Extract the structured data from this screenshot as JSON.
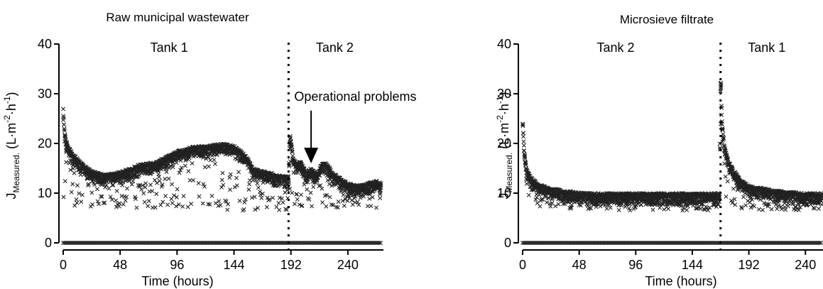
{
  "chart_data": [
    {
      "type": "scatter",
      "title": "Raw municipal wastewater",
      "xlabel": "Time (hours)",
      "ylabel": {
        "main": "J",
        "sub": "Measured.",
        "unit_prefix": "(L·m",
        "unit_exp1": "-2",
        "unit_mid": "·h",
        "unit_exp2": "-1",
        "unit_suffix": ")"
      },
      "xlim": [
        0,
        270
      ],
      "ylim": [
        0,
        40
      ],
      "xticks": [
        0,
        48,
        96,
        144,
        192,
        240
      ],
      "yticks": [
        0,
        10,
        20,
        30,
        40
      ],
      "tank_switch_x": 190,
      "annotations": {
        "left_tank": "Tank 1",
        "right_tank": "Tank 2",
        "problem": "Operational problems"
      },
      "arrow_target": {
        "x": 209,
        "y": 16
      },
      "marker": "x",
      "series": [
        {
          "kind": "upper_envelope",
          "x": [
            0,
            1,
            2,
            4,
            8,
            12,
            18,
            24,
            30,
            36,
            42,
            48,
            56,
            64,
            72,
            80,
            88,
            96,
            104,
            112,
            120,
            128,
            136,
            144,
            150,
            156,
            160,
            168,
            176,
            184,
            190,
            191,
            192,
            194,
            197,
            200,
            203,
            206,
            208,
            211,
            214,
            218,
            222,
            228,
            234,
            240,
            248,
            256,
            264,
            268
          ],
          "y": [
            27,
            23,
            21,
            19.5,
            18,
            17,
            15.5,
            14.5,
            14,
            13.8,
            14,
            14.3,
            15,
            15.8,
            16,
            16.5,
            17.5,
            18.5,
            19,
            19.5,
            19.5,
            19.8,
            20,
            19.5,
            18.5,
            17,
            15,
            14.5,
            14,
            13.5,
            13.5,
            22,
            21,
            17,
            16,
            16.5,
            15,
            14,
            15,
            14.5,
            14,
            16,
            16,
            14,
            13,
            12,
            11.5,
            12,
            12.5,
            12
          ]
        },
        {
          "kind": "lower_envelope",
          "x": [
            0,
            1,
            2,
            4,
            8,
            12,
            18,
            24,
            30,
            36,
            42,
            48,
            56,
            64,
            72,
            80,
            88,
            96,
            104,
            112,
            120,
            128,
            136,
            144,
            150,
            156,
            160,
            168,
            176,
            184,
            190,
            191,
            192,
            194,
            197,
            200,
            203,
            206,
            208,
            211,
            214,
            218,
            222,
            228,
            234,
            240,
            248,
            256,
            264,
            268
          ],
          "y": [
            9,
            9,
            8.5,
            8,
            7.5,
            7,
            7,
            7,
            7,
            7,
            7,
            7,
            7,
            7,
            7,
            7,
            7,
            7,
            7,
            7,
            7,
            7,
            6.5,
            6.5,
            6.5,
            6.5,
            6.5,
            6.5,
            6.5,
            6.5,
            6.5,
            8,
            8,
            7,
            7,
            6,
            6,
            6,
            6.5,
            7,
            7,
            7,
            7,
            7,
            7,
            7,
            7,
            7,
            7,
            7
          ]
        },
        {
          "kind": "baseline",
          "x": [
            0,
            268
          ],
          "y": [
            0,
            0
          ]
        }
      ]
    },
    {
      "type": "scatter",
      "title": "Microsieve filtrate",
      "xlabel": "Time (hours)",
      "ylabel": {
        "main": "J",
        "sub": "Measured.",
        "unit_prefix": "(L·m",
        "unit_exp1": "-2",
        "unit_mid": "·h",
        "unit_exp2": "-1",
        "unit_suffix": ")"
      },
      "xlim": [
        0,
        270
      ],
      "ylim": [
        0,
        40
      ],
      "xticks": [
        0,
        48,
        96,
        144,
        192,
        240
      ],
      "yticks": [
        0,
        10,
        20,
        30,
        40
      ],
      "tank_switch_x": 168,
      "annotations": {
        "left_tank": "Tank 2",
        "right_tank": "Tank 1"
      },
      "marker": "x",
      "series": [
        {
          "kind": "upper_envelope",
          "x": [
            0,
            1,
            2,
            4,
            8,
            12,
            18,
            24,
            36,
            48,
            60,
            72,
            96,
            120,
            144,
            160,
            167,
            168,
            169,
            171,
            174,
            178,
            184,
            192,
            204,
            216,
            240,
            256,
            270
          ],
          "y": [
            24,
            20,
            17,
            14.5,
            13,
            12,
            11.5,
            11,
            10.5,
            10.2,
            10,
            10,
            10,
            10,
            10,
            10,
            10,
            36,
            25,
            20,
            17,
            15,
            13,
            11.5,
            11,
            10.5,
            10,
            10,
            10
          ]
        },
        {
          "kind": "lower_envelope",
          "x": [
            0,
            1,
            2,
            4,
            8,
            12,
            18,
            24,
            36,
            48,
            60,
            72,
            96,
            120,
            144,
            160,
            167,
            168,
            169,
            171,
            174,
            178,
            184,
            192,
            204,
            216,
            240,
            256,
            270
          ],
          "y": [
            10,
            9.5,
            9,
            8,
            7.5,
            7.5,
            7,
            7,
            6.8,
            6.8,
            6.8,
            6.5,
            6.5,
            6.5,
            6.5,
            6.5,
            6.5,
            9,
            8.5,
            8,
            7.5,
            7,
            7,
            6.5,
            6.5,
            6.5,
            6.5,
            6.5,
            6.5
          ]
        },
        {
          "kind": "baseline",
          "x": [
            0,
            270
          ],
          "y": [
            0,
            0
          ]
        }
      ]
    }
  ]
}
